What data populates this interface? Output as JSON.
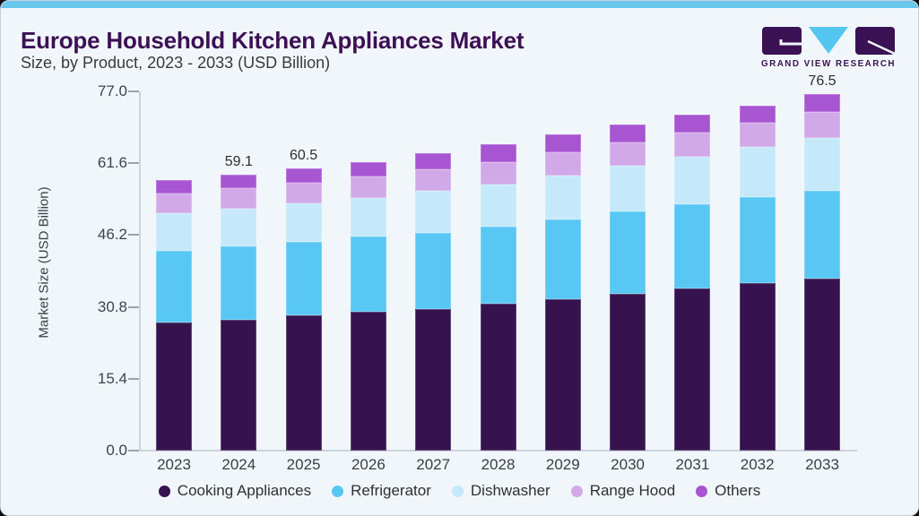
{
  "header": {
    "title": "Europe Household Kitchen Appliances Market",
    "subtitle": "Size, by Product, 2023 - 2033 (USD Billion)",
    "logo_text": "GRAND VIEW RESEARCH"
  },
  "colors": {
    "accent_bar": "#6ac7ec",
    "card_background": "#f1f6fb",
    "title_text": "#3d1056",
    "subtitle_text": "#3a3a3a",
    "axis_text": "#3e4450",
    "value_label_text": "#2d2d2d",
    "axis_line": "#ccd4dc",
    "tick_mark": "#9ba2ab",
    "logo_purple": "#3a1254",
    "logo_blue": "#53c7f0"
  },
  "chart_data": {
    "type": "bar",
    "stacked": true,
    "title": "Europe Household Kitchen Appliances Market Size, by Product, 2023 - 2033 (USD Billion)",
    "xlabel": "",
    "ylabel": "Market Size (USD Billion)",
    "ylim": [
      0,
      77.0
    ],
    "yticks": [
      "0.0",
      "15.4",
      "30.8",
      "46.2",
      "61.6",
      "77.0"
    ],
    "grid": false,
    "legend_position": "bottom",
    "categories": [
      "2023",
      "2024",
      "2025",
      "2026",
      "2027",
      "2028",
      "2029",
      "2030",
      "2031",
      "2032",
      "2033"
    ],
    "series": [
      {
        "name": "Cooking Appliances",
        "color": "#36124e",
        "values": [
          27.5,
          28.1,
          29.0,
          29.8,
          30.4,
          31.4,
          32.5,
          33.6,
          34.7,
          35.9,
          36.9
        ]
      },
      {
        "name": "Refrigerator",
        "color": "#59c7f3",
        "values": [
          15.3,
          15.7,
          15.8,
          16.0,
          16.2,
          16.6,
          17.1,
          17.7,
          18.1,
          18.4,
          18.8
        ]
      },
      {
        "name": "Dishwasher",
        "color": "#c5e9fa",
        "values": [
          8.0,
          8.0,
          8.2,
          8.4,
          9.0,
          9.1,
          9.4,
          9.8,
          10.2,
          10.7,
          11.3
        ]
      },
      {
        "name": "Range Hood",
        "color": "#d2a9e8",
        "values": [
          4.4,
          4.5,
          4.5,
          4.6,
          4.7,
          4.8,
          4.9,
          5.0,
          5.1,
          5.2,
          5.5
        ]
      },
      {
        "name": "Others",
        "color": "#a855d2",
        "values": [
          2.7,
          2.8,
          3.0,
          3.1,
          3.5,
          3.8,
          3.8,
          3.7,
          3.9,
          3.8,
          4.0
        ]
      }
    ],
    "totals": [
      57.9,
      59.1,
      60.5,
      61.9,
      63.8,
      65.7,
      67.7,
      69.8,
      72.0,
      74.0,
      76.5
    ],
    "bar_labels": {
      "2024": "59.1",
      "2025": "60.5",
      "2033": "76.5"
    }
  }
}
